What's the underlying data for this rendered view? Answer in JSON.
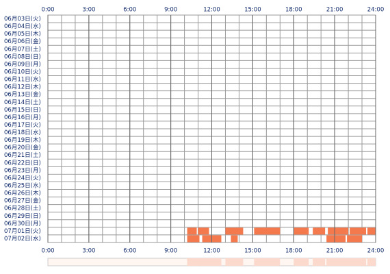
{
  "chart_data": {
    "type": "timeline",
    "categories": [
      "06月03日(火)",
      "06月04日(水)",
      "06月05日(木)",
      "06月06日(金)",
      "06月07日(土)",
      "06月08日(日)",
      "06月09日(月)",
      "06月10日(火)",
      "06月11日(水)",
      "06月12日(木)",
      "06月13日(金)",
      "06月14日(土)",
      "06月15日(日)",
      "06月16日(月)",
      "06月17日(火)",
      "06月18日(水)",
      "06月19日(木)",
      "06月20日(金)",
      "06月21日(土)",
      "06月22日(日)",
      "06月23日(月)",
      "06月24日(火)",
      "06月25日(水)",
      "06月26日(木)",
      "06月27日(金)",
      "06月28日(土)",
      "06月29日(日)",
      "06月30日(月)",
      "07月01日(火)",
      "07月02日(水)"
    ],
    "segments": [
      [],
      [],
      [],
      [],
      [],
      [],
      [],
      [],
      [],
      [],
      [],
      [],
      [],
      [],
      [],
      [],
      [],
      [],
      [],
      [],
      [],
      [],
      [],
      [],
      [],
      [],
      [],
      [],
      [
        [
          10.2,
          10.9
        ],
        [
          11.0,
          11.8
        ],
        [
          13.0,
          14.3
        ],
        [
          15.1,
          17.0
        ],
        [
          18.0,
          19.1
        ],
        [
          19.4,
          20.3
        ],
        [
          20.5,
          22.0
        ],
        [
          22.1,
          23.3
        ],
        [
          23.4,
          24.0
        ]
      ],
      [
        [
          10.2,
          11.1
        ],
        [
          11.3,
          12.7
        ],
        [
          13.4,
          13.9
        ],
        [
          20.4,
          21.8
        ],
        [
          21.9,
          23.0
        ]
      ]
    ],
    "color": "#f47a4e",
    "summary_color": "#fbd9cc",
    "xlim": [
      0,
      24
    ],
    "xticks": [
      {
        "value": 0,
        "label": "0:00"
      },
      {
        "value": 3,
        "label": "3:00"
      },
      {
        "value": 6,
        "label": "6:00"
      },
      {
        "value": 9,
        "label": "9:00"
      },
      {
        "value": 12,
        "label": "12:00"
      },
      {
        "value": 15,
        "label": "15:00"
      },
      {
        "value": 18,
        "label": "18:00"
      },
      {
        "value": 21,
        "label": "21:00"
      },
      {
        "value": 24,
        "label": "24:00"
      }
    ]
  }
}
